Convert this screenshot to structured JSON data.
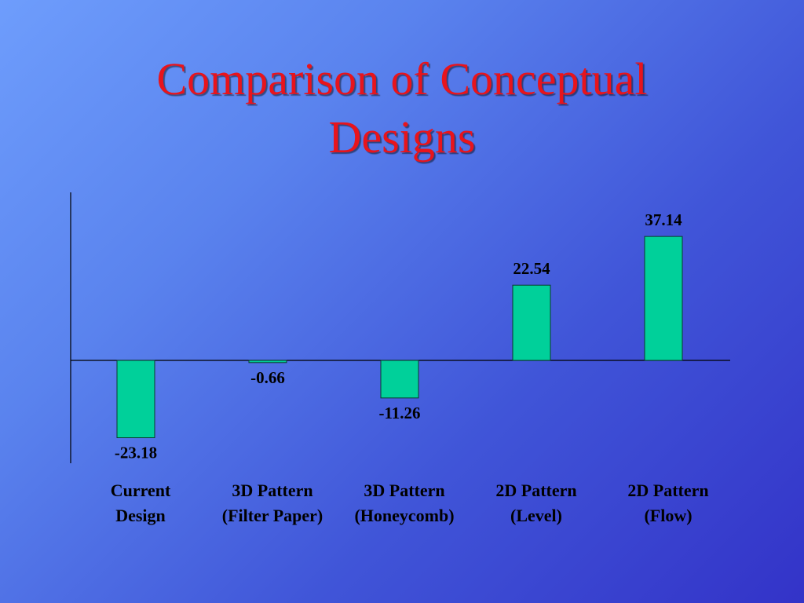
{
  "slide": {
    "title_line1": "Comparison of Conceptual",
    "title_line2": "Designs"
  },
  "colors": {
    "title": "#e8141c",
    "bar_fill": "#00d09a",
    "background_start": "#6e9dfc",
    "background_end": "#3333c8"
  },
  "chart_data": {
    "type": "bar",
    "title": "",
    "xlabel": "",
    "ylabel": "",
    "categories": [
      [
        "Current",
        "Design"
      ],
      [
        "3D Pattern",
        "(Filter Paper)"
      ],
      [
        "3D Pattern",
        "(Honeycomb)"
      ],
      [
        "2D Pattern",
        "(Level)"
      ],
      [
        "2D Pattern",
        "(Flow)"
      ]
    ],
    "values": [
      -23.18,
      -0.66,
      -11.26,
      22.54,
      37.14
    ],
    "value_labels": [
      "-23.18",
      "-0.66",
      "-11.26",
      "22.54",
      "37.14"
    ],
    "ylim": [
      -28,
      50
    ],
    "grid": false,
    "legend": "none"
  }
}
